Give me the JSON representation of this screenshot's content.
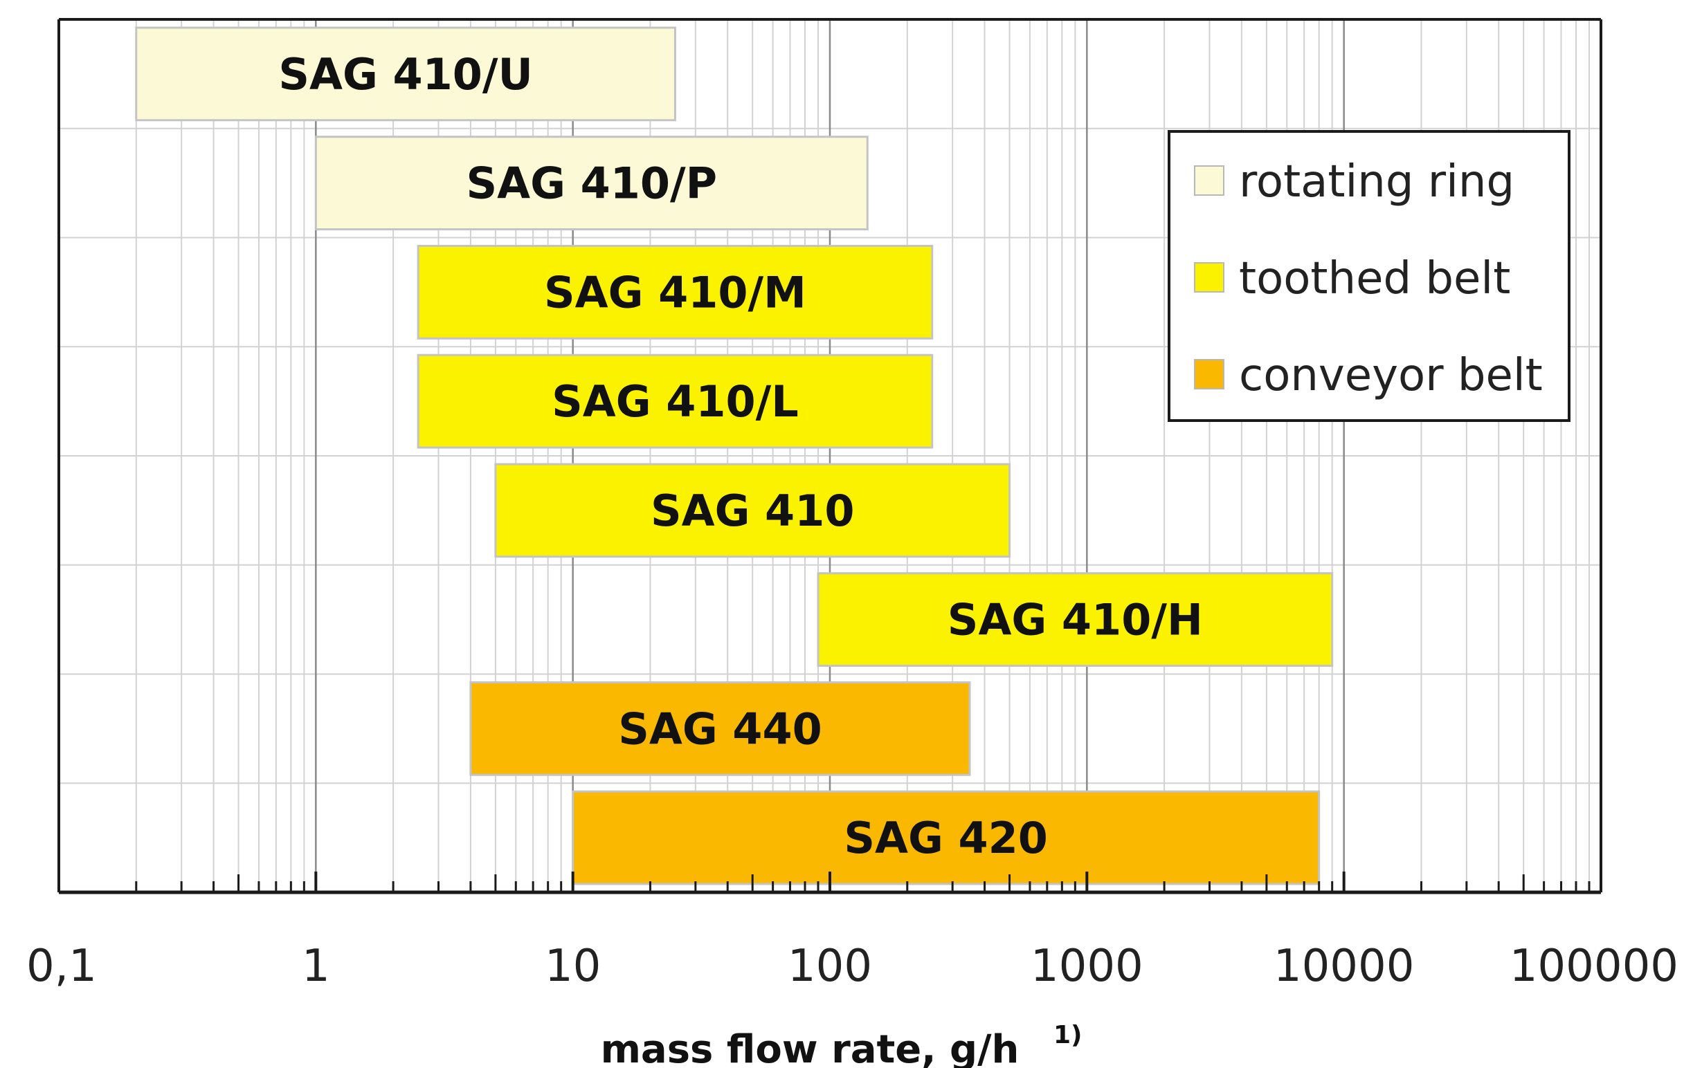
{
  "chart_data": {
    "type": "bar",
    "orientation": "horizontal-range",
    "x_scale": "log",
    "xlim": [
      0.1,
      100000
    ],
    "xlabel": "mass flow rate, g/h",
    "xlabel_sup": "1)",
    "x_tick_labels": [
      "0,1",
      "1",
      "10",
      "100",
      "1000",
      "10000",
      "100000"
    ],
    "grid": true,
    "legend_position": "top-right",
    "series": [
      {
        "name": "rotating ring",
        "color": "#fcf9d6"
      },
      {
        "name": "toothed belt",
        "color": "#fbf200"
      },
      {
        "name": "conveyor belt",
        "color": "#fab800"
      }
    ],
    "bars": [
      {
        "label": "SAG 410/U",
        "min": 0.2,
        "max": 25,
        "series": "rotating ring"
      },
      {
        "label": "SAG 410/P",
        "min": 1,
        "max": 140,
        "series": "rotating ring"
      },
      {
        "label": "SAG 410/M",
        "min": 2.5,
        "max": 250,
        "series": "toothed belt"
      },
      {
        "label": "SAG 410/L",
        "min": 2.5,
        "max": 250,
        "series": "toothed belt"
      },
      {
        "label": "SAG 410",
        "min": 5,
        "max": 500,
        "series": "toothed belt"
      },
      {
        "label": "SAG 410/H",
        "min": 90,
        "max": 9000,
        "series": "toothed belt"
      },
      {
        "label": "SAG 440",
        "min": 4,
        "max": 350,
        "series": "conveyor belt"
      },
      {
        "label": "SAG 420",
        "min": 10,
        "max": 8000,
        "series": "conveyor belt"
      }
    ]
  }
}
